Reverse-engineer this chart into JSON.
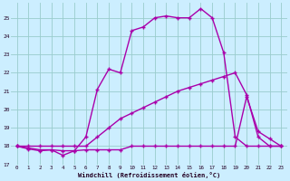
{
  "xlabel": "Windchill (Refroidissement éolien,°C)",
  "bg_color": "#cceeff",
  "line_color": "#aa00aa",
  "grid_color": "#99cccc",
  "xlim": [
    -0.5,
    23.5
  ],
  "ylim": [
    17.0,
    25.8
  ],
  "yticks": [
    17,
    18,
    19,
    20,
    21,
    22,
    23,
    24,
    25
  ],
  "xticks": [
    0,
    1,
    2,
    3,
    4,
    5,
    6,
    7,
    8,
    9,
    10,
    11,
    12,
    13,
    14,
    15,
    16,
    17,
    18,
    19,
    20,
    21,
    22,
    23
  ],
  "series1_x": [
    0,
    1,
    2,
    3,
    4,
    5,
    6,
    7,
    8,
    9,
    10,
    11,
    12,
    13,
    14,
    15,
    16,
    17,
    18,
    19,
    20,
    21,
    22,
    23
  ],
  "series1_y": [
    18.0,
    17.85,
    17.75,
    17.8,
    17.75,
    17.75,
    18.5,
    21.1,
    22.2,
    22.0,
    24.3,
    24.5,
    25.0,
    25.1,
    25.0,
    25.0,
    25.5,
    25.0,
    23.1,
    18.5,
    18.0,
    18.0,
    18.0,
    18.0
  ],
  "series2_x": [
    0,
    1,
    2,
    3,
    4,
    5,
    6,
    7,
    8,
    9,
    10,
    11,
    12,
    13,
    14,
    15,
    16,
    17,
    18,
    19,
    20,
    21,
    22,
    23
  ],
  "series2_y": [
    18.0,
    18.0,
    18.0,
    18.0,
    18.0,
    18.0,
    18.0,
    18.5,
    19.0,
    19.5,
    19.8,
    20.1,
    20.4,
    20.7,
    21.0,
    21.2,
    21.4,
    21.6,
    21.8,
    22.0,
    20.8,
    18.5,
    18.0,
    18.0
  ],
  "series3_x": [
    0,
    1,
    2,
    3,
    4,
    5,
    6,
    7,
    8,
    9,
    10,
    11,
    12,
    13,
    14,
    15,
    16,
    17,
    18,
    19,
    20,
    21,
    22,
    23
  ],
  "series3_y": [
    18.0,
    17.9,
    17.8,
    17.8,
    17.5,
    17.75,
    17.8,
    17.8,
    17.8,
    17.8,
    18.0,
    18.0,
    18.0,
    18.0,
    18.0,
    18.0,
    18.0,
    18.0,
    18.0,
    18.0,
    20.7,
    18.8,
    18.4,
    18.0
  ]
}
